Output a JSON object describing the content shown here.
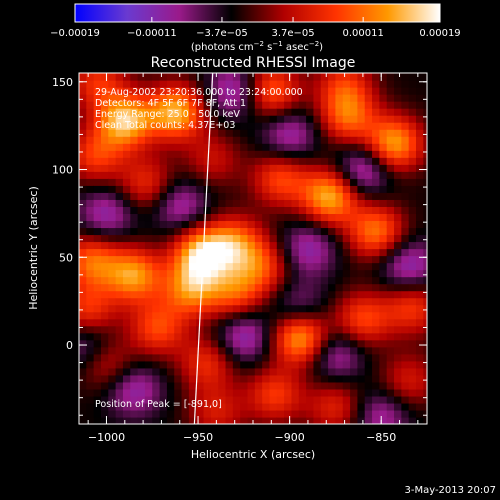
{
  "chart_data": {
    "type": "heatmap",
    "title": "Reconstructed RHESSI Image",
    "xlabel": "Heliocentric X (arcsec)",
    "ylabel": "Heliocentric Y (arcsec)",
    "xlim": [
      -1015,
      -825
    ],
    "ylim": [
      -45,
      155
    ],
    "xticks": [
      -1000,
      -950,
      -900,
      -850
    ],
    "xtick_labels": [
      "−1000",
      "−950",
      "−900",
      "−850"
    ],
    "yticks": [
      0,
      50,
      100,
      150
    ],
    "ytick_labels": [
      "0",
      "50",
      "100",
      "150"
    ],
    "colorbar": {
      "range": [
        -0.00019,
        0.00019
      ],
      "ticks": [
        -0.00019,
        -0.00011,
        -3.7e-05,
        3.7e-05,
        0.00011,
        0.00019
      ],
      "tick_labels": [
        "−0.00019",
        "−0.00011",
        "−3.7e−05",
        "3.7e−05",
        "0.00011",
        "0.00019"
      ],
      "unit_main": "(photons cm",
      "unit_exp1": "−2",
      "unit_mid": " s",
      "unit_exp2": "−1",
      "unit_mid2": " asec",
      "unit_exp3": "−2",
      "unit_end": ")",
      "colors": [
        "#0000ff",
        "#6a3ad0",
        "#9a1a8a",
        "#000000",
        "#b00000",
        "#ff3300",
        "#ff9900",
        "#ffffff"
      ]
    },
    "info_lines": [
      "29-Aug-2002 23:20:36.000 to 23:24:00.000",
      "Detectors: 4F 5F 6F 7F 8F, Att 1",
      "Energy Range: 25.0 - 50.0 keV",
      "Clean    Total counts: 4.37E+03"
    ],
    "peak_text": "Position of Peak = [-891,0]",
    "limb_line_x": [
      -952,
      -942
    ],
    "sources": [
      {
        "x": -990,
        "y": 128,
        "intensity": 1.0
      },
      {
        "x": -962,
        "y": 133,
        "intensity": 0.95
      },
      {
        "x": -1006,
        "y": 108,
        "intensity": 0.55
      },
      {
        "x": -978,
        "y": 92,
        "intensity": 0.5
      },
      {
        "x": -942,
        "y": 106,
        "intensity": 0.35
      },
      {
        "x": -948,
        "y": 52,
        "intensity": 1.0
      },
      {
        "x": -930,
        "y": 58,
        "intensity": 0.7
      },
      {
        "x": -954,
        "y": 32,
        "intensity": 0.75
      },
      {
        "x": -985,
        "y": 40,
        "intensity": 0.85
      },
      {
        "x": -1008,
        "y": 48,
        "intensity": 0.7
      },
      {
        "x": -1010,
        "y": 20,
        "intensity": 0.55
      },
      {
        "x": -972,
        "y": 10,
        "intensity": 0.6
      },
      {
        "x": -930,
        "y": 30,
        "intensity": 0.6
      },
      {
        "x": -915,
        "y": 45,
        "intensity": 0.55
      },
      {
        "x": -894,
        "y": 5,
        "intensity": 1.0
      },
      {
        "x": -878,
        "y": 85,
        "intensity": 0.95
      },
      {
        "x": -905,
        "y": 95,
        "intensity": 0.6
      },
      {
        "x": -853,
        "y": 65,
        "intensity": 0.75
      },
      {
        "x": -843,
        "y": 115,
        "intensity": 0.9
      },
      {
        "x": -868,
        "y": 130,
        "intensity": 0.65
      },
      {
        "x": -910,
        "y": 145,
        "intensity": 0.7
      },
      {
        "x": -870,
        "y": 148,
        "intensity": 0.5
      },
      {
        "x": -833,
        "y": 22,
        "intensity": 0.55
      },
      {
        "x": -860,
        "y": 15,
        "intensity": 0.6
      },
      {
        "x": -908,
        "y": -28,
        "intensity": 0.55
      },
      {
        "x": -945,
        "y": -10,
        "intensity": 0.5
      },
      {
        "x": -1000,
        "y": -10,
        "intensity": 0.45
      },
      {
        "x": -940,
        "y": -38,
        "intensity": 0.4
      },
      {
        "x": -875,
        "y": -35,
        "intensity": 0.45
      },
      {
        "x": -1005,
        "y": 150,
        "intensity": 0.5
      },
      {
        "x": -835,
        "y": -20,
        "intensity": 0.4
      },
      {
        "x": -1000,
        "y": 75,
        "intensity": -0.45
      },
      {
        "x": -930,
        "y": 145,
        "intensity": -0.5
      },
      {
        "x": -960,
        "y": 80,
        "intensity": -0.45
      },
      {
        "x": -925,
        "y": 5,
        "intensity": -0.5
      },
      {
        "x": -890,
        "y": 55,
        "intensity": -0.45
      },
      {
        "x": -860,
        "y": 100,
        "intensity": -0.55
      },
      {
        "x": -835,
        "y": 45,
        "intensity": -0.5
      },
      {
        "x": -875,
        "y": -5,
        "intensity": -0.45
      },
      {
        "x": -985,
        "y": -25,
        "intensity": -0.45
      },
      {
        "x": -1010,
        "y": 0,
        "intensity": -0.4
      },
      {
        "x": -850,
        "y": -40,
        "intensity": -0.4
      },
      {
        "x": -900,
        "y": 120,
        "intensity": -0.45
      },
      {
        "x": -895,
        "y": 20,
        "intensity": -0.4
      }
    ]
  },
  "footer": {
    "date": "3-May-2013 20:07"
  }
}
